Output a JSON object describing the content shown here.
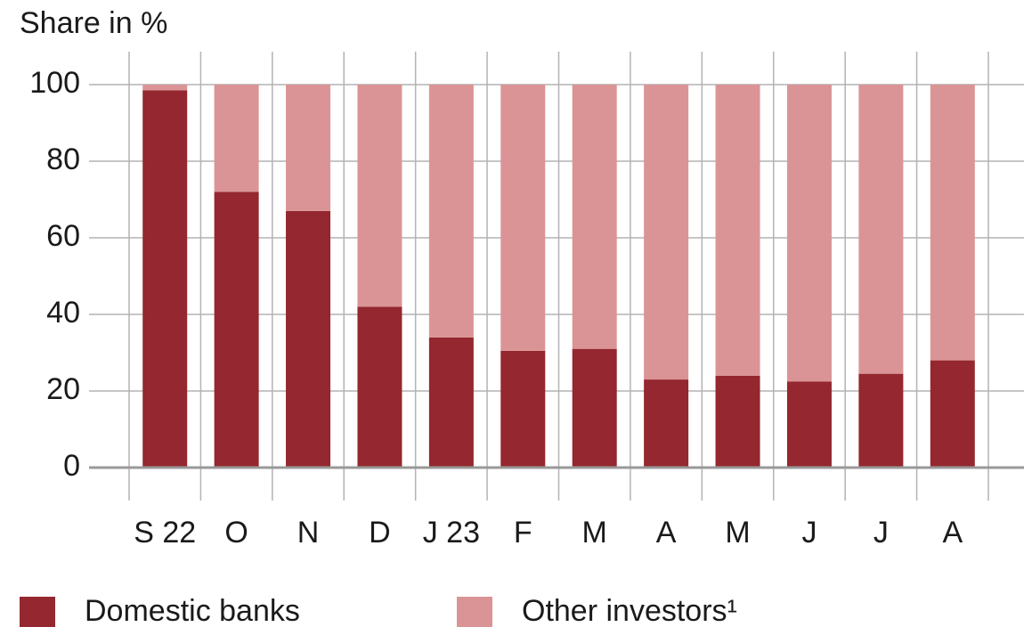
{
  "chart_data": {
    "type": "stacked_bar",
    "y_axis_label": "Share in %",
    "categories": [
      "S 22",
      "O",
      "N",
      "D",
      "J 23",
      "F",
      "M",
      "A",
      "M",
      "J",
      "J",
      "A"
    ],
    "series": [
      {
        "name": "Domestic banks",
        "color": "#94272f",
        "values": [
          98.5,
          72,
          67,
          42,
          34,
          30.5,
          31,
          23,
          24,
          22.5,
          24.5,
          28
        ]
      },
      {
        "name": "Other investors¹",
        "color": "#db9496",
        "values": [
          1.5,
          28,
          33,
          58,
          66,
          69.5,
          69,
          77,
          76,
          77.5,
          75.5,
          72
        ]
      }
    ],
    "ylim": [
      0,
      100
    ],
    "yticks": [
      0,
      20,
      40,
      60,
      80,
      100
    ],
    "grid": true
  }
}
